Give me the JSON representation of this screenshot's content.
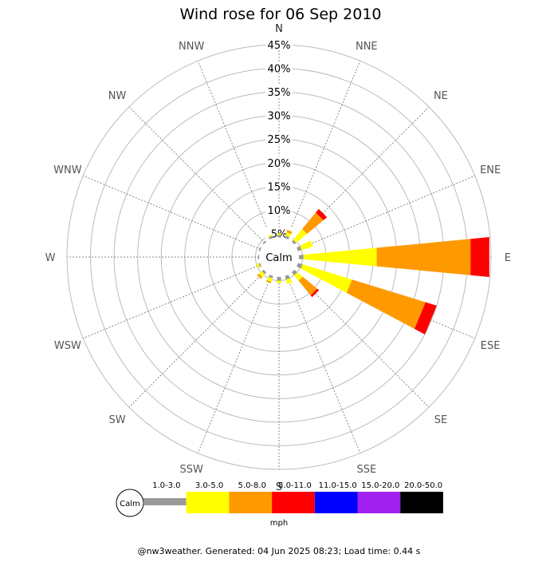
{
  "chart_data": {
    "type": "windrose",
    "title": "Wind rose for 06 Sep 2010",
    "directions": [
      "N",
      "NNE",
      "NE",
      "ENE",
      "E",
      "ESE",
      "SE",
      "SSE",
      "S",
      "SSW",
      "SW",
      "WSW",
      "W",
      "WNW",
      "NW",
      "NNW"
    ],
    "radial_ticks": [
      "5%",
      "10%",
      "15%",
      "20%",
      "25%",
      "30%",
      "35%",
      "40%",
      "45%"
    ],
    "rmax": 45,
    "calm_label": "Calm",
    "speed_bins": [
      "1.0-3.0",
      "3.0-5.0",
      "5.0-8.0",
      "8.0-11.0",
      "11.0-15.0",
      "15.0-20.0",
      "20.0-50.0"
    ],
    "bin_colors": [
      "#999999",
      "#ffff00",
      "#ff9900",
      "#ff0000",
      "#0000ff",
      "#a020f0",
      "#000000"
    ],
    "unit": "mph",
    "frequencies": [
      {
        "dir": "N",
        "values": [
          0.5,
          0.3,
          0,
          0,
          0,
          0,
          0
        ]
      },
      {
        "dir": "NNE",
        "values": [
          0.5,
          0.8,
          0.5,
          0,
          0,
          0,
          0
        ]
      },
      {
        "dir": "NE",
        "values": [
          0.5,
          3.0,
          4.5,
          1.0,
          0,
          0,
          0
        ]
      },
      {
        "dir": "ENE",
        "values": [
          0.8,
          2.5,
          0,
          0,
          0,
          0,
          0
        ]
      },
      {
        "dir": "E",
        "values": [
          1.0,
          15.6,
          20.0,
          4.0,
          0,
          0,
          0
        ]
      },
      {
        "dir": "ESE",
        "values": [
          1.0,
          11.0,
          16.3,
          2.5,
          0,
          0,
          0
        ]
      },
      {
        "dir": "SE",
        "values": [
          0.8,
          1.5,
          4.0,
          0.5,
          0,
          0,
          0
        ]
      },
      {
        "dir": "SSE",
        "values": [
          0.8,
          1.0,
          0,
          0,
          0,
          0,
          0
        ]
      },
      {
        "dir": "S",
        "values": [
          0.8,
          0.5,
          0,
          0,
          0,
          0,
          0
        ]
      },
      {
        "dir": "SSW",
        "values": [
          0.5,
          0.8,
          0.3,
          0,
          0,
          0,
          0
        ]
      },
      {
        "dir": "SW",
        "values": [
          0.5,
          0.8,
          0.5,
          0,
          0,
          0,
          0
        ]
      },
      {
        "dir": "WSW",
        "values": [
          0.3,
          0.5,
          0,
          0,
          0,
          0,
          0
        ]
      },
      {
        "dir": "W",
        "values": [
          0.3,
          0,
          0,
          0,
          0,
          0,
          0
        ]
      },
      {
        "dir": "WNW",
        "values": [
          0.3,
          0,
          0,
          0,
          0,
          0,
          0
        ]
      },
      {
        "dir": "NW",
        "values": [
          0.3,
          0,
          0,
          0,
          0,
          0,
          0
        ]
      },
      {
        "dir": "NNW",
        "values": [
          0.5,
          0.3,
          0,
          0,
          0,
          0,
          0
        ]
      }
    ]
  },
  "footer": "@nw3weather. Generated: 04 Jun 2025 08:23; Load time: 0.44 s"
}
